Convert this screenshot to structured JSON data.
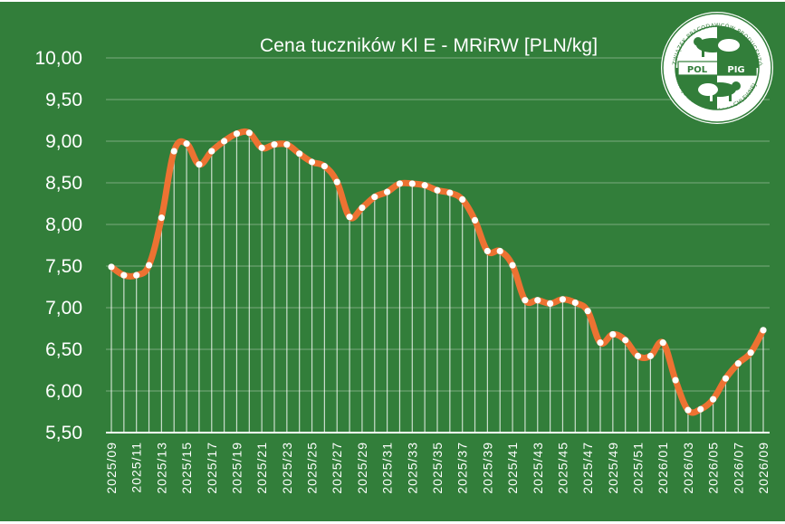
{
  "chart_data": {
    "type": "line",
    "title": "Cena tuczników Kl E - MRiRW [PLN/kg]",
    "xlabel": "",
    "ylabel": "",
    "ylim": [
      5.5,
      10.0
    ],
    "y_ticks": [
      "5,50",
      "6,00",
      "6,50",
      "7,00",
      "7,50",
      "8,00",
      "8,50",
      "9,00",
      "9,50",
      "10,00"
    ],
    "grid": true,
    "legend": "none",
    "x_tick_labels": [
      "2025/09",
      "2025/11",
      "2025/13",
      "2025/15",
      "2025/17",
      "2025/19",
      "2025/21",
      "2025/23",
      "2025/25",
      "2025/27",
      "2025/29",
      "2025/31",
      "2025/33",
      "2025/35",
      "2025/37",
      "2025/39",
      "2025/41",
      "2025/43",
      "2025/45",
      "2025/47",
      "2025/49",
      "2025/51",
      "2026/01",
      "2026/03",
      "2026/05",
      "2026/07",
      "2026/09"
    ],
    "categories": [
      "2025/09",
      "2025/10",
      "2025/11",
      "2025/12",
      "2025/13",
      "2025/14",
      "2025/15",
      "2025/16",
      "2025/17",
      "2025/18",
      "2025/19",
      "2025/20",
      "2025/21",
      "2025/22",
      "2025/23",
      "2025/24",
      "2025/25",
      "2025/26",
      "2025/27",
      "2025/28",
      "2025/29",
      "2025/30",
      "2025/31",
      "2025/32",
      "2025/33",
      "2025/34",
      "2025/35",
      "2025/36",
      "2025/37",
      "2025/38",
      "2025/39",
      "2025/40",
      "2025/41",
      "2025/42",
      "2025/43",
      "2025/44",
      "2025/45",
      "2025/46",
      "2025/47",
      "2025/48",
      "2025/49",
      "2025/50",
      "2025/51",
      "2025/52",
      "2026/01",
      "2026/02",
      "2026/03",
      "2026/04",
      "2026/05",
      "2026/06",
      "2026/07",
      "2026/08",
      "2026/09"
    ],
    "series": [
      {
        "name": "Cena tuczników Kl E",
        "color": "#ed7232",
        "marker_color": "#ffffff",
        "values": [
          7.49,
          7.39,
          7.39,
          7.51,
          8.08,
          8.88,
          8.97,
          8.72,
          8.88,
          9.0,
          9.09,
          9.1,
          8.92,
          8.96,
          8.96,
          8.85,
          8.75,
          8.7,
          8.51,
          8.09,
          8.2,
          8.33,
          8.39,
          8.49,
          8.49,
          8.47,
          8.41,
          8.38,
          8.3,
          8.05,
          7.68,
          7.68,
          7.51,
          7.09,
          7.09,
          7.05,
          7.1,
          7.06,
          6.96,
          6.58,
          6.68,
          6.61,
          6.42,
          6.42,
          6.58,
          6.13,
          5.77,
          5.78,
          5.9,
          6.15,
          6.33,
          6.46,
          6.73
        ]
      }
    ]
  },
  "logo": {
    "top_left_text": "ZWIĄZEK PRACODAWCÓW",
    "top_right_text": "PRODUCENTÓW TRZODY",
    "bottom_text": "KRAJOWY",
    "bottom_right_text": "CHLEWNEJ",
    "left_word": "POL",
    "right_word": "PIG"
  },
  "colors": {
    "background": "#327e3a",
    "line": "#ed7232",
    "text": "#ffffff"
  }
}
